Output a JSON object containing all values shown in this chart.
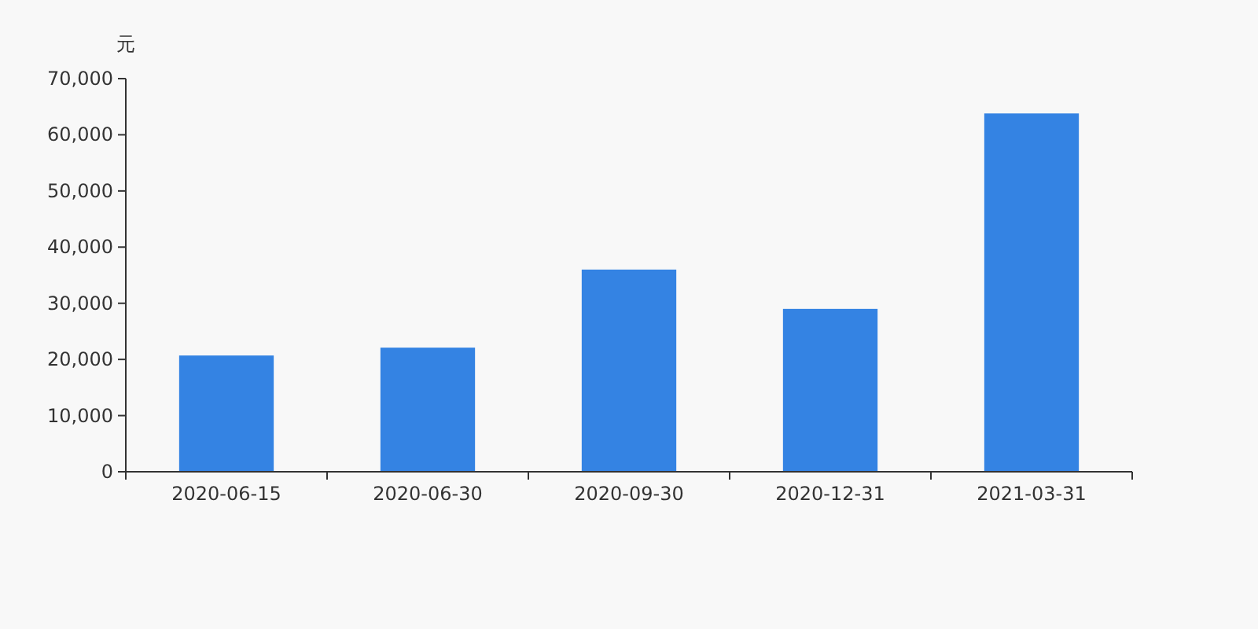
{
  "chart_data": {
    "type": "bar",
    "ylabel": "元",
    "categories": [
      "2020-06-15",
      "2020-06-30",
      "2020-09-30",
      "2020-12-31",
      "2021-03-31"
    ],
    "values": [
      20700,
      22100,
      36000,
      29000,
      63800
    ],
    "color": "#3483e3",
    "ylim": [
      0,
      70000
    ],
    "yticks": [
      0,
      {
        "value": 10000,
        "label": "10,000"
      },
      {
        "value": 20000,
        "label": "20,000"
      },
      {
        "value": 30000,
        "label": "30,000"
      },
      {
        "value": 40000,
        "label": "40,000"
      },
      {
        "value": 50000,
        "label": "50,000"
      },
      {
        "value": 60000,
        "label": "60,000"
      },
      {
        "value": 70000,
        "label": "70,000"
      }
    ],
    "grid": false
  }
}
